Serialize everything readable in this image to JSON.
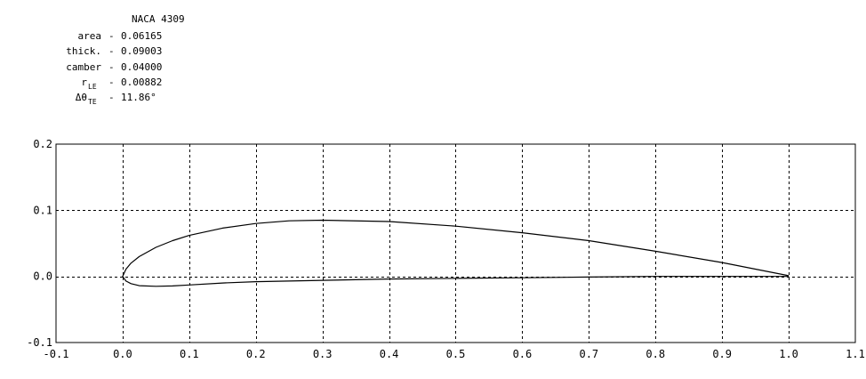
{
  "info_block": {
    "title": "NACA 4309",
    "rows": [
      {
        "label": "area",
        "value": "0.06165"
      },
      {
        "label": "thick.",
        "value": "0.09003"
      },
      {
        "label": "camber",
        "value": "0.04000"
      },
      {
        "label": "r_LE",
        "label_main": "r",
        "label_sub": "LE",
        "value": "0.00882"
      },
      {
        "label": "Δθ_TE",
        "label_main": "Δθ",
        "label_sub": "TE",
        "value": "11.86°"
      }
    ]
  },
  "chart_data": {
    "type": "line",
    "title": "NACA 4309",
    "xlabel": "",
    "ylabel": "",
    "xlim": [
      -0.1,
      1.1
    ],
    "ylim": [
      -0.1,
      0.2
    ],
    "x_ticks": [
      -0.1,
      0.0,
      0.1,
      0.2,
      0.3,
      0.4,
      0.5,
      0.6,
      0.7,
      0.8,
      0.9,
      1.0,
      1.1
    ],
    "x_tick_labels": [
      "-0.1",
      "0.0",
      "0.1",
      "0.2",
      "0.3",
      "0.4",
      "0.5",
      "0.6",
      "0.7",
      "0.8",
      "0.9",
      "1.0",
      "1.1"
    ],
    "y_ticks": [
      -0.1,
      0.0,
      0.1,
      0.2
    ],
    "y_tick_labels": [
      "-0.1",
      "0.0",
      "0.1",
      "0.2"
    ],
    "grid": true,
    "grid_style": "dashed",
    "series": [
      {
        "x": [
          1.0,
          0.95,
          0.9,
          0.8,
          0.7,
          0.6,
          0.5,
          0.4,
          0.3,
          0.25,
          0.2,
          0.15,
          0.1,
          0.075,
          0.05,
          0.025,
          0.0125,
          0.005,
          0.0,
          0.005,
          0.0125,
          0.025,
          0.05,
          0.075,
          0.1,
          0.15,
          0.2,
          0.25,
          0.3,
          0.4,
          0.5,
          0.6,
          0.7,
          0.8,
          0.9,
          0.95,
          1.0
        ],
        "y": [
          0.001,
          0.011,
          0.021,
          0.038,
          0.054,
          0.066,
          0.076,
          0.083,
          0.085,
          0.084,
          0.08,
          0.073,
          0.062,
          0.054,
          0.044,
          0.03,
          0.02,
          0.011,
          0.0,
          -0.007,
          -0.011,
          -0.014,
          -0.015,
          -0.0145,
          -0.013,
          -0.01,
          -0.008,
          -0.007,
          -0.006,
          -0.004,
          -0.003,
          -0.002,
          -0.001,
          0.0,
          0.0,
          0.0,
          0.0
        ]
      }
    ],
    "colors": {
      "line": "#000000",
      "grid": "#000000",
      "background": "#ffffff"
    }
  }
}
